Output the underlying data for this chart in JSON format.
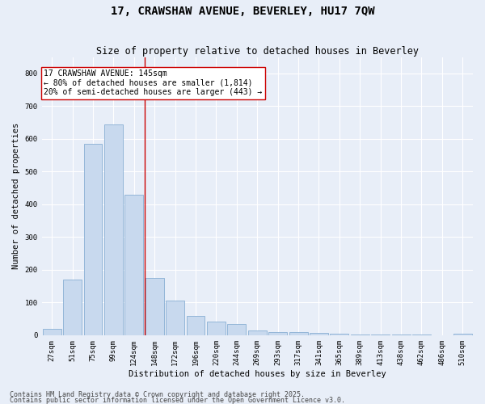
{
  "title": "17, CRAWSHAW AVENUE, BEVERLEY, HU17 7QW",
  "subtitle": "Size of property relative to detached houses in Beverley",
  "xlabel": "Distribution of detached houses by size in Beverley",
  "ylabel": "Number of detached properties",
  "categories": [
    "27sqm",
    "51sqm",
    "75sqm",
    "99sqm",
    "124sqm",
    "148sqm",
    "172sqm",
    "196sqm",
    "220sqm",
    "244sqm",
    "269sqm",
    "293sqm",
    "317sqm",
    "341sqm",
    "365sqm",
    "389sqm",
    "413sqm",
    "438sqm",
    "462sqm",
    "486sqm",
    "510sqm"
  ],
  "values": [
    20,
    170,
    585,
    645,
    430,
    175,
    105,
    58,
    42,
    33,
    15,
    10,
    10,
    7,
    5,
    3,
    2,
    1,
    1,
    0,
    5
  ],
  "bar_color": "#c8d9ee",
  "bar_edge_color": "#89afd4",
  "vline_x_index": 4.5,
  "vline_color": "#cc0000",
  "annotation_text": "17 CRAWSHAW AVENUE: 145sqm\n← 80% of detached houses are smaller (1,814)\n20% of semi-detached houses are larger (443) →",
  "annotation_box_color": "#ffffff",
  "annotation_box_edge": "#cc0000",
  "ylim": [
    0,
    850
  ],
  "yticks": [
    0,
    100,
    200,
    300,
    400,
    500,
    600,
    700,
    800
  ],
  "footnote1": "Contains HM Land Registry data © Crown copyright and database right 2025.",
  "footnote2": "Contains public sector information licensed under the Open Government Licence v3.0.",
  "bg_color": "#e8eef8",
  "plot_bg_color": "#e8eef8",
  "grid_color": "#ffffff",
  "title_fontsize": 10,
  "subtitle_fontsize": 8.5,
  "label_fontsize": 7.5,
  "tick_fontsize": 6.5,
  "annotation_fontsize": 7,
  "footnote_fontsize": 6
}
